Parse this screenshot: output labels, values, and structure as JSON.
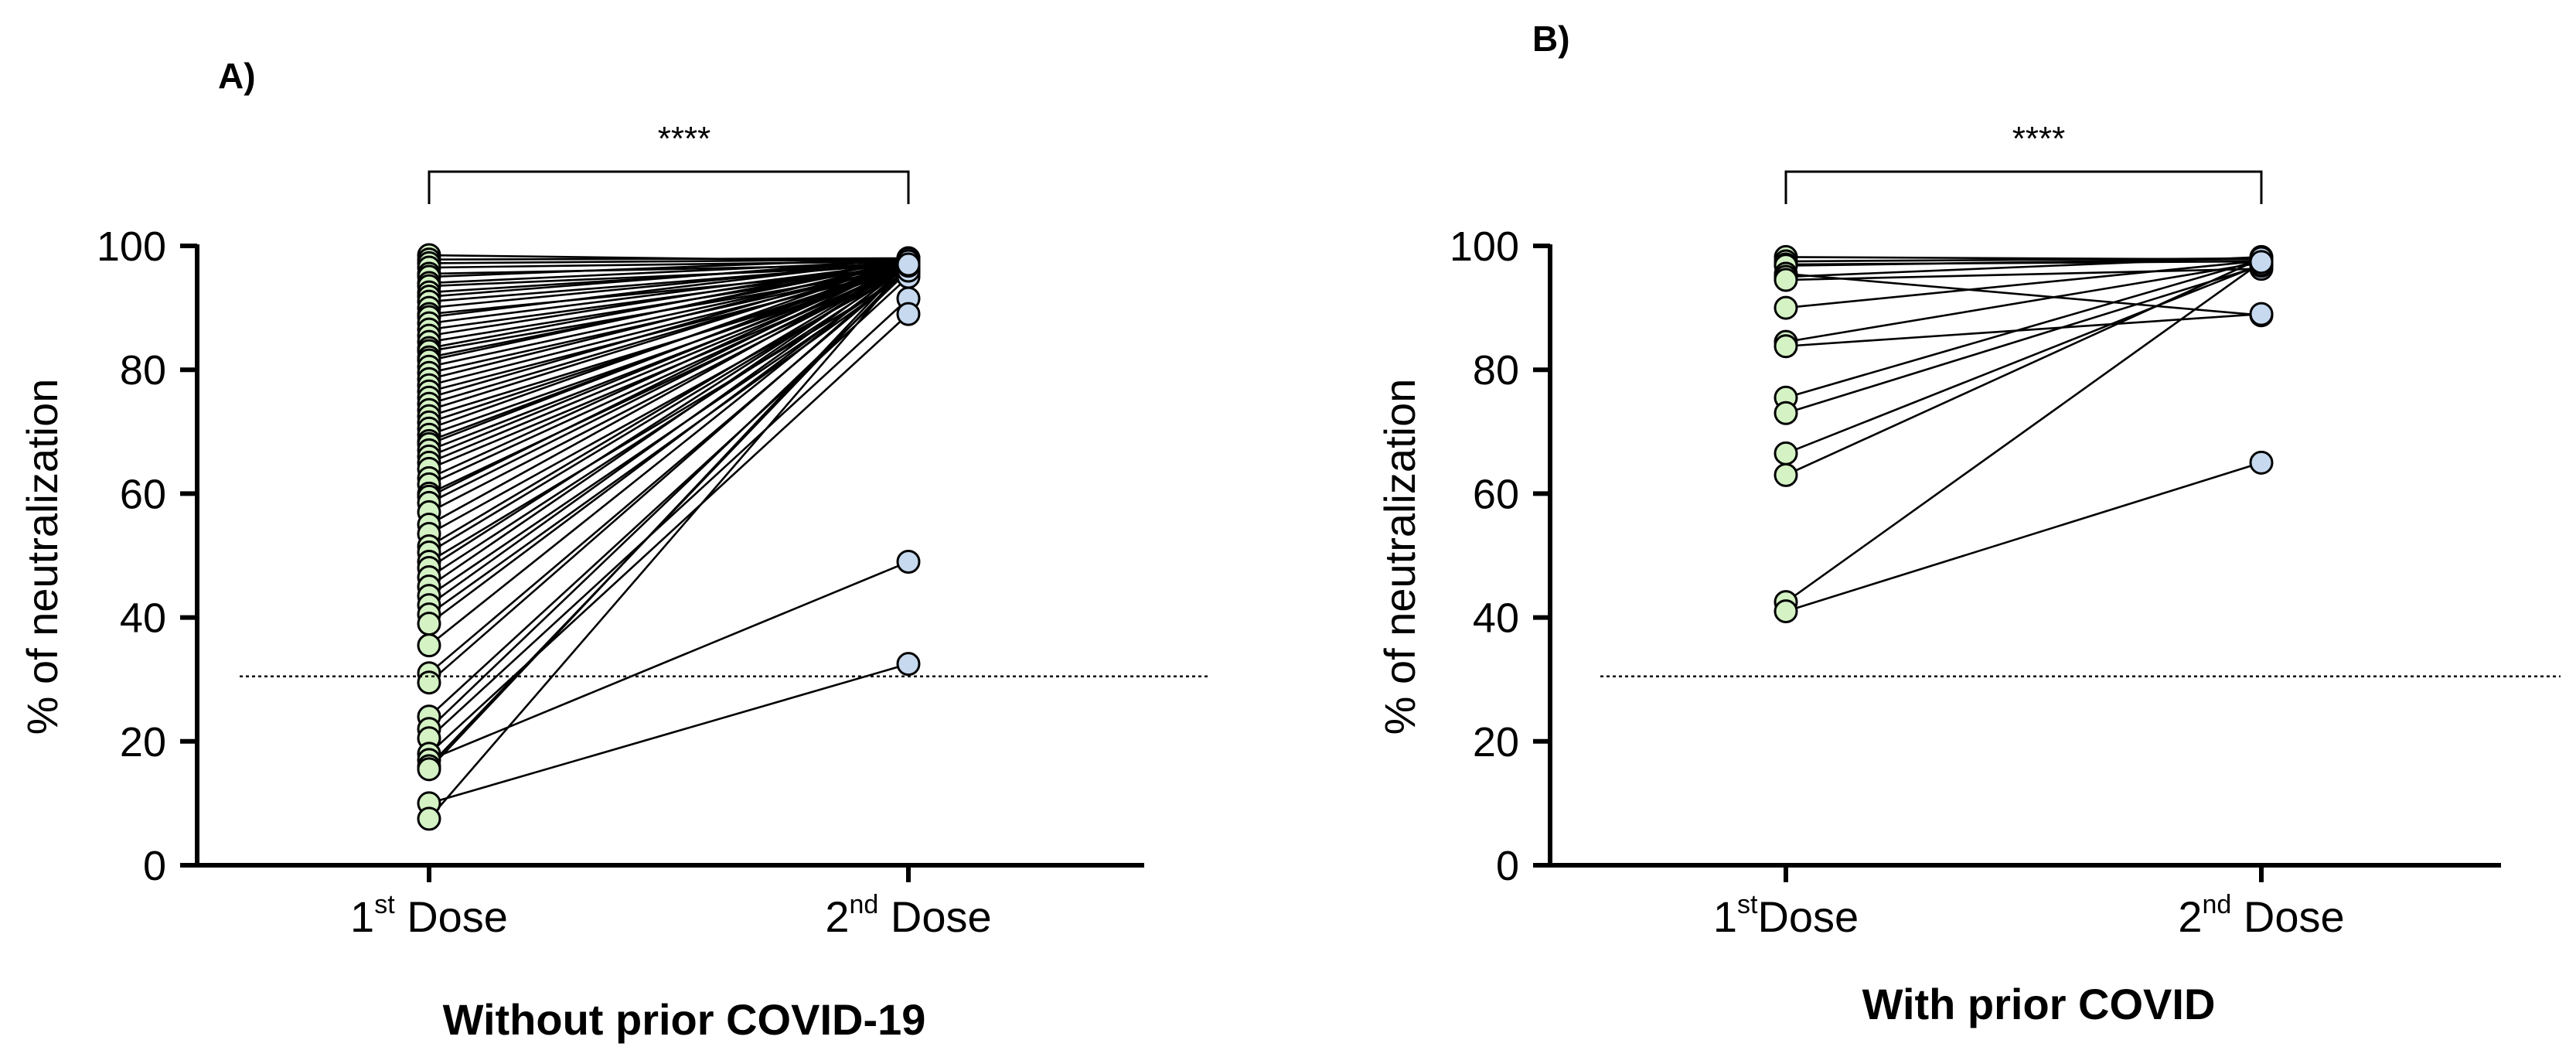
{
  "chart_data": [
    {
      "type": "scatter",
      "panel": "A)",
      "group_label": "Without prior COVID-19",
      "ylabel": "% of neutralization",
      "ylim": [
        0,
        100
      ],
      "yticks": [
        0,
        20,
        40,
        60,
        80,
        100
      ],
      "categories": [
        {
          "base": "1",
          "sup": "st",
          "rest": " Dose"
        },
        {
          "base": "2",
          "sup": "nd",
          "rest": " Dose"
        }
      ],
      "threshold": 30.5,
      "significance": "****",
      "point_colors": {
        "first": "#d4f2c4",
        "second": "#c6d9ef"
      },
      "pairs": [
        [
          98.5,
          97.5
        ],
        [
          97.8,
          98.0
        ],
        [
          97.2,
          97.8
        ],
        [
          96.5,
          97.5
        ],
        [
          95.5,
          97.0
        ],
        [
          95.0,
          98.0
        ],
        [
          94.0,
          97.6
        ],
        [
          93.5,
          96.8
        ],
        [
          92.5,
          97.4
        ],
        [
          91.8,
          97.9
        ],
        [
          91.0,
          97.2
        ],
        [
          90.0,
          97.5
        ],
        [
          89.0,
          96.5
        ],
        [
          88.5,
          97.8
        ],
        [
          87.5,
          97.3
        ],
        [
          86.5,
          96.9
        ],
        [
          85.5,
          97.6
        ],
        [
          84.5,
          97.0
        ],
        [
          83.5,
          97.8
        ],
        [
          83.0,
          96.4
        ],
        [
          82.0,
          97.5
        ],
        [
          81.5,
          98.0
        ],
        [
          80.5,
          97.2
        ],
        [
          79.5,
          96.8
        ],
        [
          78.5,
          97.7
        ],
        [
          77.5,
          97.0
        ],
        [
          76.5,
          96.5
        ],
        [
          75.5,
          97.8
        ],
        [
          74.5,
          97.3
        ],
        [
          73.5,
          97.6
        ],
        [
          72.5,
          96.2
        ],
        [
          71.5,
          97.0
        ],
        [
          70.5,
          97.9
        ],
        [
          69.5,
          96.6
        ],
        [
          68.5,
          97.4
        ],
        [
          68.0,
          97.8
        ],
        [
          67.0,
          96.9
        ],
        [
          66.0,
          97.5
        ],
        [
          65.0,
          97.1
        ],
        [
          64.0,
          96.4
        ],
        [
          62.5,
          97.7
        ],
        [
          61.5,
          97.0
        ],
        [
          60.0,
          96.5
        ],
        [
          59.5,
          97.8
        ],
        [
          58.5,
          97.2
        ],
        [
          57.0,
          96.8
        ],
        [
          55.0,
          97.6
        ],
        [
          53.5,
          96.3
        ],
        [
          51.5,
          97.4
        ],
        [
          50.5,
          97.0
        ],
        [
          49.0,
          95.5
        ],
        [
          48.0,
          97.5
        ],
        [
          46.5,
          96.7
        ],
        [
          45.0,
          97.9
        ],
        [
          43.5,
          96.0
        ],
        [
          42.0,
          97.3
        ],
        [
          40.5,
          95.8
        ],
        [
          39.0,
          96.9
        ],
        [
          35.5,
          97.2
        ],
        [
          31.0,
          96.5
        ],
        [
          29.5,
          97.0
        ],
        [
          24.0,
          95.0
        ],
        [
          22.0,
          96.0
        ],
        [
          20.5,
          91.5
        ],
        [
          18.0,
          89.0
        ],
        [
          17.0,
          49.0
        ],
        [
          16.0,
          96.8
        ],
        [
          15.5,
          97.5
        ],
        [
          10.0,
          32.5
        ],
        [
          7.5,
          97.0
        ]
      ]
    },
    {
      "type": "scatter",
      "panel": "B)",
      "group_label": "With prior COVID",
      "ylabel": "% of neutralization",
      "ylim": [
        0,
        100
      ],
      "yticks": [
        0,
        20,
        40,
        60,
        80,
        100
      ],
      "categories": [
        {
          "base": "1",
          "sup": "st",
          "rest": "Dose"
        },
        {
          "base": "2",
          "sup": "nd",
          "rest": " Dose"
        }
      ],
      "threshold": 30.5,
      "significance": "****",
      "point_colors": {
        "first": "#d4f2c4",
        "second": "#c6d9ef"
      },
      "pairs": [
        [
          98.2,
          97.8
        ],
        [
          97.5,
          98.0
        ],
        [
          97.0,
          97.5
        ],
        [
          96.8,
          97.9
        ],
        [
          95.5,
          88.8
        ],
        [
          95.0,
          98.2
        ],
        [
          94.5,
          96.3
        ],
        [
          90.0,
          97.6
        ],
        [
          84.5,
          97.3
        ],
        [
          83.8,
          89.0
        ],
        [
          75.5,
          97.8
        ],
        [
          73.0,
          96.8
        ],
        [
          66.5,
          97.0
        ],
        [
          63.0,
          98.0
        ],
        [
          42.5,
          97.4
        ],
        [
          41.0,
          65.0
        ]
      ]
    }
  ]
}
